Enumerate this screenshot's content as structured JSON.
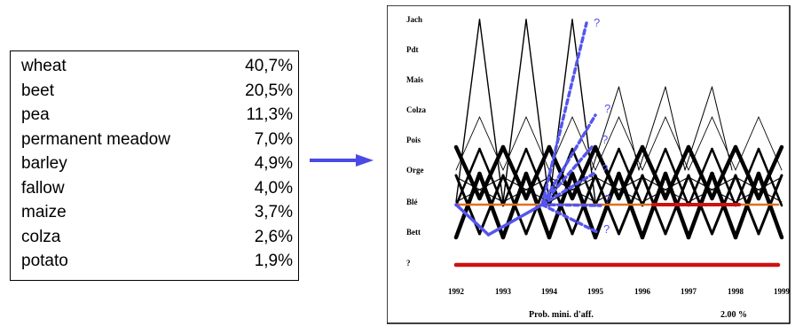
{
  "table": {
    "rows": [
      {
        "label": "wheat",
        "value": "40,7%"
      },
      {
        "label": "beet",
        "value": "20,5%"
      },
      {
        "label": "pea",
        "value": "11,3%"
      },
      {
        "label": "permanent meadow",
        "value": "7,0%"
      },
      {
        "label": "barley",
        "value": "4,9%"
      },
      {
        "label": "fallow",
        "value": "4,0%"
      },
      {
        "label": "maize",
        "value": "3,7%"
      },
      {
        "label": "colza",
        "value": "2,6%"
      },
      {
        "label": "potato",
        "value": "1,9%"
      }
    ]
  },
  "diagram": {
    "row_labels": [
      "Jach",
      "Pdt",
      "Mais",
      "Colza",
      "Pois",
      "Orge",
      "Blé",
      "Bett",
      "?"
    ],
    "years": [
      "1992",
      "1993",
      "1994",
      "1995",
      "1996",
      "1997",
      "1998",
      "1999"
    ],
    "question_mark": "?",
    "footer_left": "Prob. mini. d'aff.",
    "footer_right": "2.00 %",
    "colors": {
      "arrow": "#4a4ae6",
      "prediction": "#5555ee",
      "orange_line": "#e07020",
      "red_line": "#cc1111",
      "edges": "#000000"
    }
  }
}
